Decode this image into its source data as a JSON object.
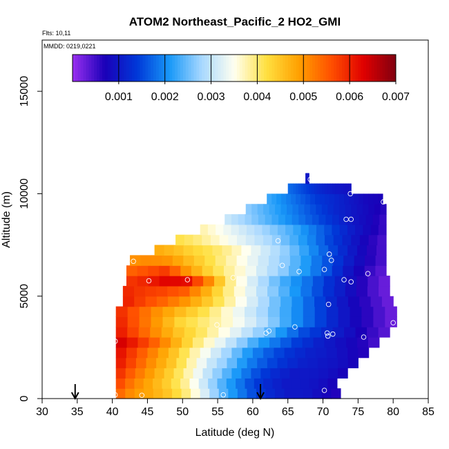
{
  "chart_data": {
    "type": "heatmap",
    "title": "ATOM2 Northeast_Pacific_2 HO2_GMI",
    "annotations": [
      "Flts: 10,11",
      "MMDD: 0219,0221"
    ],
    "xlabel": "Latitude (deg N)",
    "ylabel": "Altitude (m)",
    "xlim": [
      30,
      85
    ],
    "ylim": [
      0,
      17500
    ],
    "x_ticks": [
      "30",
      "35",
      "40",
      "45",
      "50",
      "55",
      "60",
      "65",
      "70",
      "75",
      "80",
      "85"
    ],
    "y_ticks": [
      "0",
      "5000",
      "10000",
      "15000"
    ],
    "colorbar": {
      "min": 0.0,
      "max": 0.007,
      "tick_values": [
        0.001,
        0.002,
        0.003,
        0.004,
        0.005,
        0.006,
        0.007
      ],
      "tick_labels": [
        "0.001",
        "0.002",
        "0.003",
        "0.004",
        "0.005",
        "0.006",
        "0.007"
      ],
      "colors": [
        "#9a30f0",
        "#1a00b8",
        "#0038d8",
        "#1898f8",
        "#a8d8ff",
        "#fffff0",
        "#ffe040",
        "#ffa000",
        "#ff5000",
        "#e00000",
        "#800010"
      ]
    },
    "row_height_m": 500,
    "rows": [
      {
        "alt": 250,
        "lat_start": 40.5,
        "lat_end": 72.5,
        "values": [
          0.0055,
          0.005,
          0.0048,
          0.0045,
          0.004,
          0.0033,
          0.0025,
          0.002,
          0.0015,
          0.0012,
          0.001,
          0.001,
          0.0008,
          0.0006
        ]
      },
      {
        "alt": 750,
        "lat_start": 40.5,
        "lat_end": 72.0,
        "values": [
          0.0058,
          0.0052,
          0.0048,
          0.0044,
          0.0039,
          0.0032,
          0.0025,
          0.002,
          0.0015,
          0.0012,
          0.001,
          0.001,
          0.0009,
          0.0007
        ]
      },
      {
        "alt": 1250,
        "lat_start": 40.5,
        "lat_end": 73.5,
        "values": [
          0.006,
          0.0054,
          0.0049,
          0.0044,
          0.0038,
          0.0031,
          0.0025,
          0.002,
          0.0015,
          0.0012,
          0.001,
          0.001,
          0.0009,
          0.0007
        ]
      },
      {
        "alt": 1750,
        "lat_start": 40.5,
        "lat_end": 75.0,
        "values": [
          0.0062,
          0.0056,
          0.005,
          0.0045,
          0.0038,
          0.0031,
          0.0026,
          0.002,
          0.0016,
          0.0013,
          0.0011,
          0.001,
          0.0009,
          0.0007
        ]
      },
      {
        "alt": 2250,
        "lat_start": 40.5,
        "lat_end": 76.5,
        "values": [
          0.0063,
          0.0057,
          0.0051,
          0.0045,
          0.0038,
          0.0032,
          0.0026,
          0.002,
          0.0016,
          0.0013,
          0.0011,
          0.001,
          0.0008,
          0.0006
        ]
      },
      {
        "alt": 2750,
        "lat_start": 40.5,
        "lat_end": 78.0,
        "values": [
          0.0065,
          0.006,
          0.0054,
          0.0047,
          0.004,
          0.0034,
          0.0028,
          0.0022,
          0.0018,
          0.0014,
          0.0011,
          0.0009,
          0.0007,
          0.0004
        ]
      },
      {
        "alt": 3250,
        "lat_start": 40.5,
        "lat_end": 79.5,
        "values": [
          0.0062,
          0.0056,
          0.005,
          0.0045,
          0.0041,
          0.0036,
          0.0031,
          0.0026,
          0.002,
          0.0015,
          0.0012,
          0.0009,
          0.0006,
          0.0003
        ]
      },
      {
        "alt": 3750,
        "lat_start": 40.5,
        "lat_end": 80.5,
        "values": [
          0.0061,
          0.0055,
          0.0049,
          0.0043,
          0.004,
          0.0037,
          0.0033,
          0.0028,
          0.0022,
          0.0017,
          0.0012,
          0.0008,
          0.0005,
          0.0002
        ]
      },
      {
        "alt": 4250,
        "lat_start": 40.5,
        "lat_end": 80.5,
        "values": [
          0.006,
          0.0055,
          0.005,
          0.0046,
          0.0042,
          0.0037,
          0.0032,
          0.0027,
          0.0022,
          0.0017,
          0.0012,
          0.0008,
          0.0005,
          0.0002
        ]
      },
      {
        "alt": 4750,
        "lat_start": 41.5,
        "lat_end": 80.0,
        "values": [
          0.0061,
          0.0057,
          0.0054,
          0.005,
          0.0045,
          0.0039,
          0.0033,
          0.0027,
          0.0022,
          0.0017,
          0.0012,
          0.0008,
          0.0005,
          0.0002
        ]
      },
      {
        "alt": 5250,
        "lat_start": 41.5,
        "lat_end": 79.5,
        "values": [
          0.006,
          0.0058,
          0.0057,
          0.0055,
          0.0048,
          0.004,
          0.0034,
          0.0028,
          0.0023,
          0.0018,
          0.0013,
          0.0009,
          0.0005,
          0.0002
        ]
      },
      {
        "alt": 5750,
        "lat_start": 42.0,
        "lat_end": 79.5,
        "values": [
          0.0058,
          0.006,
          0.0063,
          0.0062,
          0.0052,
          0.004,
          0.0033,
          0.0027,
          0.0022,
          0.0018,
          0.0013,
          0.0009,
          0.0005,
          0.0002
        ]
      },
      {
        "alt": 6250,
        "lat_start": 42.0,
        "lat_end": 79.0,
        "values": [
          0.0054,
          0.0056,
          0.0058,
          0.005,
          0.0044,
          0.0039,
          0.0035,
          0.003,
          0.0026,
          0.0021,
          0.0016,
          0.001,
          0.0006,
          0.0003
        ]
      },
      {
        "alt": 6750,
        "lat_start": 42.5,
        "lat_end": 79.0,
        "values": [
          0.005,
          0.0051,
          0.005,
          0.0046,
          0.0042,
          0.0038,
          0.0034,
          0.003,
          0.0026,
          0.0021,
          0.0016,
          0.0011,
          0.0007,
          0.0004
        ]
      },
      {
        "alt": 7250,
        "lat_start": 46.0,
        "lat_end": 79.0,
        "values": [
          0.0048,
          0.0046,
          0.0043,
          0.0041,
          0.0038,
          0.0034,
          0.003,
          0.0026,
          0.0021,
          0.0016,
          0.0011,
          0.0007,
          0.0004
        ]
      },
      {
        "alt": 7750,
        "lat_start": 49.0,
        "lat_end": 79.0,
        "values": [
          0.0042,
          0.004,
          0.0037,
          0.0034,
          0.0031,
          0.0028,
          0.0024,
          0.002,
          0.0015,
          0.0011,
          0.0007,
          0.0004
        ]
      },
      {
        "alt": 8250,
        "lat_start": 52.5,
        "lat_end": 79.0,
        "values": [
          0.0038,
          0.0035,
          0.0032,
          0.0029,
          0.0026,
          0.0023,
          0.0019,
          0.0015,
          0.0011,
          0.0008,
          0.0005
        ]
      },
      {
        "alt": 8750,
        "lat_start": 56.0,
        "lat_end": 79.0,
        "values": [
          0.0031,
          0.0028,
          0.0025,
          0.0022,
          0.0019,
          0.0016,
          0.0013,
          0.001,
          0.0008,
          0.0005
        ]
      },
      {
        "alt": 9250,
        "lat_start": 59.0,
        "lat_end": 79.0,
        "values": [
          0.0027,
          0.0024,
          0.0021,
          0.0018,
          0.0015,
          0.0012,
          0.001,
          0.0008,
          0.0006
        ]
      },
      {
        "alt": 9750,
        "lat_start": 62.0,
        "lat_end": 78.5,
        "values": [
          0.0023,
          0.002,
          0.0017,
          0.0014,
          0.0012,
          0.001,
          0.0008,
          0.0007
        ]
      },
      {
        "alt": 10250,
        "lat_start": 65.0,
        "lat_end": 74.0,
        "values": [
          0.0018,
          0.0015,
          0.0012,
          0.001,
          0.0009
        ]
      },
      {
        "alt": 10750,
        "lat_start": 67.5,
        "lat_end": 68.0,
        "values": [
          0.001
        ]
      }
    ],
    "sample_points": [
      [
        40.4,
        180
      ],
      [
        44.2,
        160
      ],
      [
        55.8,
        180
      ],
      [
        70.2,
        400
      ],
      [
        40.4,
        2800
      ],
      [
        43.0,
        6700
      ],
      [
        45.2,
        5750
      ],
      [
        50.7,
        5800
      ],
      [
        54.9,
        3600
      ],
      [
        57.2,
        5900
      ],
      [
        61.9,
        3200
      ],
      [
        62.3,
        3300
      ],
      [
        63.6,
        7700
      ],
      [
        64.2,
        6500
      ],
      [
        66.0,
        3500
      ],
      [
        66.6,
        6200
      ],
      [
        70.2,
        6300
      ],
      [
        70.6,
        3200
      ],
      [
        70.7,
        3050
      ],
      [
        70.8,
        4600
      ],
      [
        70.9,
        7050
      ],
      [
        71.2,
        6750
      ],
      [
        71.4,
        3150
      ],
      [
        73.0,
        5800
      ],
      [
        73.3,
        8750
      ],
      [
        73.9,
        10000
      ],
      [
        74.0,
        5700
      ],
      [
        74.0,
        8750
      ],
      [
        75.8,
        3000
      ],
      [
        76.4,
        6100
      ],
      [
        78.6,
        9600
      ],
      [
        79.8,
        7000
      ],
      [
        80.0,
        3700
      ],
      [
        68.2,
        10700
      ]
    ],
    "markers": [
      34.7,
      61.1
    ]
  }
}
